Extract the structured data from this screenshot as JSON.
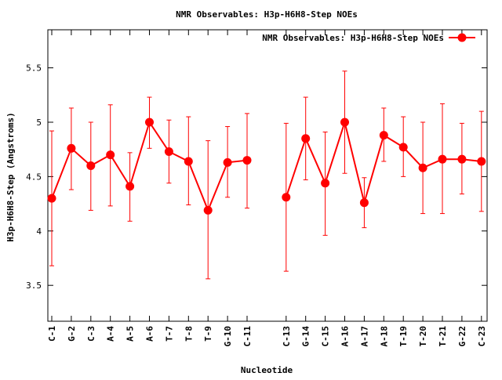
{
  "chart_data": {
    "type": "line",
    "title": "NMR Observables: H3p-H6H8-Step NOEs",
    "xlabel": "Nucleotide",
    "ylabel": "H3p-H6H8-Step (Angstroms)",
    "ylim": [
      3.17,
      5.85
    ],
    "yticks": [
      "3.5",
      "4",
      "4.5",
      "5",
      "5.5"
    ],
    "grid": false,
    "legend_position": "top-right",
    "series": [
      {
        "name": "NMR Observables: H3p-H6H8-Step NOEs",
        "color": "#ff0000",
        "points": [
          {
            "label": "C-1",
            "y": 4.3,
            "err_low": 3.68,
            "err_high": 4.92
          },
          {
            "label": "G-2",
            "y": 4.76,
            "err_low": 4.38,
            "err_high": 5.13
          },
          {
            "label": "C-3",
            "y": 4.6,
            "err_low": 4.19,
            "err_high": 5.0
          },
          {
            "label": "A-4",
            "y": 4.7,
            "err_low": 4.23,
            "err_high": 5.16
          },
          {
            "label": "A-5",
            "y": 4.41,
            "err_low": 4.09,
            "err_high": 4.72
          },
          {
            "label": "A-6",
            "y": 5.0,
            "err_low": 4.76,
            "err_high": 5.23
          },
          {
            "label": "T-7",
            "y": 4.73,
            "err_low": 4.44,
            "err_high": 5.02
          },
          {
            "label": "T-8",
            "y": 4.64,
            "err_low": 4.24,
            "err_high": 5.05
          },
          {
            "label": "T-9",
            "y": 4.19,
            "err_low": 3.56,
            "err_high": 4.83
          },
          {
            "label": "G-10",
            "y": 4.63,
            "err_low": 4.31,
            "err_high": 4.96
          },
          {
            "label": "C-11",
            "y": 4.65,
            "err_low": 4.21,
            "err_high": 5.08
          },
          {
            "label": "C-13",
            "y": 4.31,
            "err_low": 3.63,
            "err_high": 4.99
          },
          {
            "label": "G-14",
            "y": 4.85,
            "err_low": 4.47,
            "err_high": 5.23
          },
          {
            "label": "C-15",
            "y": 4.44,
            "err_low": 3.96,
            "err_high": 4.91
          },
          {
            "label": "A-16",
            "y": 5.0,
            "err_low": 4.53,
            "err_high": 5.47
          },
          {
            "label": "A-17",
            "y": 4.26,
            "err_low": 4.03,
            "err_high": 4.49
          },
          {
            "label": "A-18",
            "y": 4.88,
            "err_low": 4.64,
            "err_high": 5.13
          },
          {
            "label": "T-19",
            "y": 4.77,
            "err_low": 4.5,
            "err_high": 5.05
          },
          {
            "label": "T-20",
            "y": 4.58,
            "err_low": 4.16,
            "err_high": 5.0
          },
          {
            "label": "T-21",
            "y": 4.66,
            "err_low": 4.16,
            "err_high": 5.17
          },
          {
            "label": "G-22",
            "y": 4.66,
            "err_low": 4.34,
            "err_high": 4.99
          },
          {
            "label": "C-23",
            "y": 4.64,
            "err_low": 4.18,
            "err_high": 5.1
          }
        ]
      }
    ]
  }
}
